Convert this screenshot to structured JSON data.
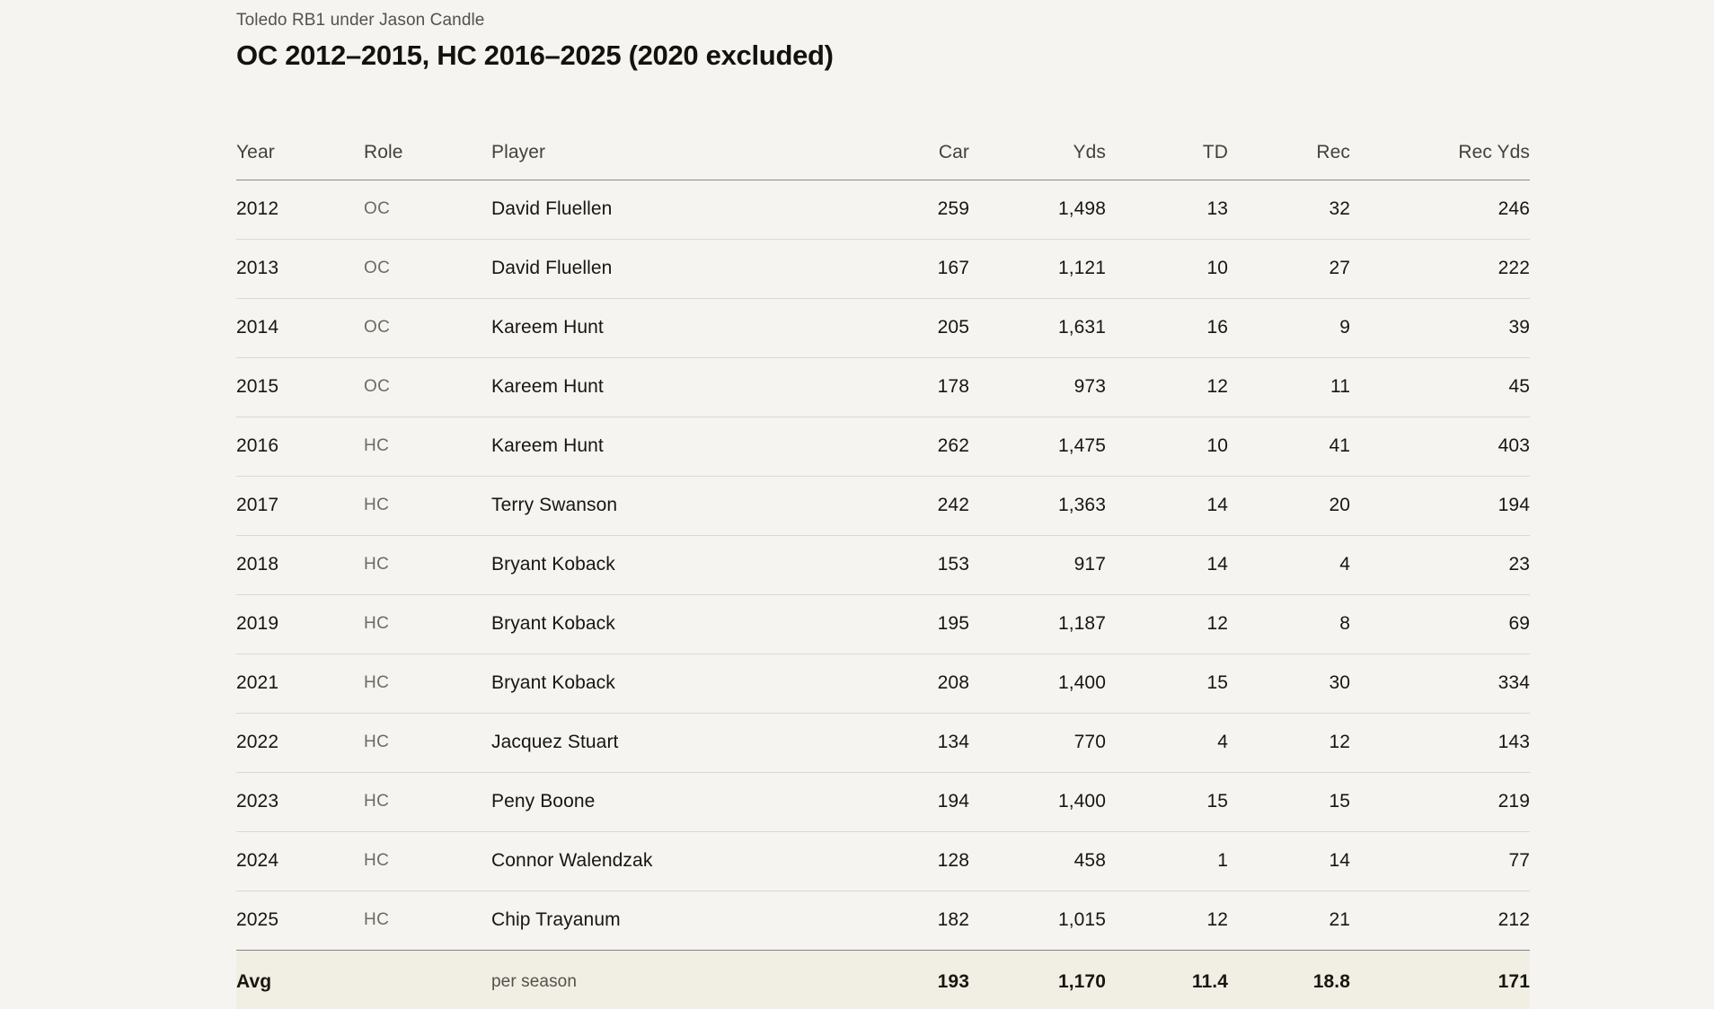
{
  "page": {
    "subtitle": "Toledo RB1 under Jason Candle",
    "title": "OC 2012–2015, HC 2016–2025 (2020 excluded)"
  },
  "table": {
    "columns": [
      "Year",
      "Role",
      "Player",
      "Car",
      "Yds",
      "TD",
      "Rec",
      "Rec Yds"
    ],
    "rows": [
      {
        "year": "2012",
        "role": "OC",
        "player": "David Fluellen",
        "car": "259",
        "yds": "1,498",
        "td": "13",
        "rec": "32",
        "rec_yds": "246"
      },
      {
        "year": "2013",
        "role": "OC",
        "player": "David Fluellen",
        "car": "167",
        "yds": "1,121",
        "td": "10",
        "rec": "27",
        "rec_yds": "222"
      },
      {
        "year": "2014",
        "role": "OC",
        "player": "Kareem Hunt",
        "car": "205",
        "yds": "1,631",
        "td": "16",
        "rec": "9",
        "rec_yds": "39"
      },
      {
        "year": "2015",
        "role": "OC",
        "player": "Kareem Hunt",
        "car": "178",
        "yds": "973",
        "td": "12",
        "rec": "11",
        "rec_yds": "45"
      },
      {
        "year": "2016",
        "role": "HC",
        "player": "Kareem Hunt",
        "car": "262",
        "yds": "1,475",
        "td": "10",
        "rec": "41",
        "rec_yds": "403"
      },
      {
        "year": "2017",
        "role": "HC",
        "player": "Terry Swanson",
        "car": "242",
        "yds": "1,363",
        "td": "14",
        "rec": "20",
        "rec_yds": "194"
      },
      {
        "year": "2018",
        "role": "HC",
        "player": "Bryant Koback",
        "car": "153",
        "yds": "917",
        "td": "14",
        "rec": "4",
        "rec_yds": "23"
      },
      {
        "year": "2019",
        "role": "HC",
        "player": "Bryant Koback",
        "car": "195",
        "yds": "1,187",
        "td": "12",
        "rec": "8",
        "rec_yds": "69"
      },
      {
        "year": "2021",
        "role": "HC",
        "player": "Bryant Koback",
        "car": "208",
        "yds": "1,400",
        "td": "15",
        "rec": "30",
        "rec_yds": "334"
      },
      {
        "year": "2022",
        "role": "HC",
        "player": "Jacquez Stuart",
        "car": "134",
        "yds": "770",
        "td": "4",
        "rec": "12",
        "rec_yds": "143"
      },
      {
        "year": "2023",
        "role": "HC",
        "player": "Peny Boone",
        "car": "194",
        "yds": "1,400",
        "td": "15",
        "rec": "15",
        "rec_yds": "219"
      },
      {
        "year": "2024",
        "role": "HC",
        "player": "Connor Walendzak",
        "car": "128",
        "yds": "458",
        "td": "1",
        "rec": "14",
        "rec_yds": "77"
      },
      {
        "year": "2025",
        "role": "HC",
        "player": "Chip Trayanum",
        "car": "182",
        "yds": "1,015",
        "td": "12",
        "rec": "21",
        "rec_yds": "212"
      }
    ],
    "avg": {
      "label": "Avg",
      "note": "per season",
      "car": "193",
      "yds": "1,170",
      "td": "11.4",
      "rec": "18.8",
      "rec_yds": "171"
    }
  },
  "colors": {
    "page_background": "#f5f4f1",
    "avg_row_background": "#f1efe4",
    "row_border": "#dad8d2",
    "strong_border": "#8c8a83",
    "body_text": "#181610",
    "muted_text": "#55514b",
    "role_text": "#6e6a62"
  }
}
